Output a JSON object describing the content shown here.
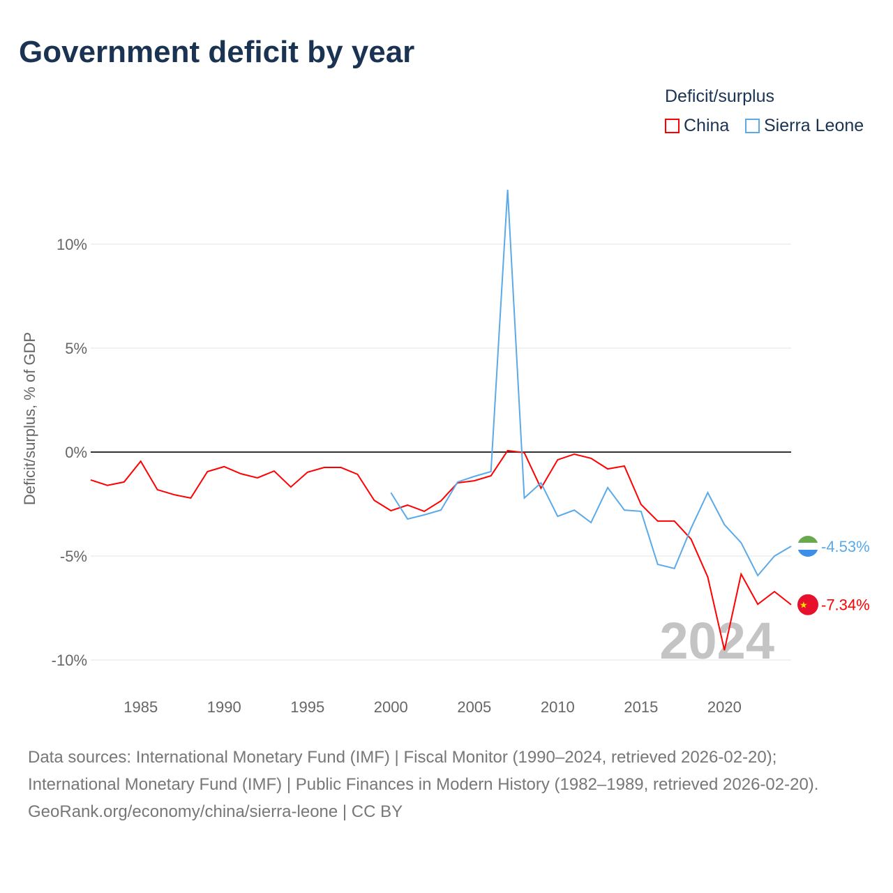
{
  "title": "Government deficit by year",
  "legend": {
    "title": "Deficit/surplus",
    "items": [
      {
        "name": "China",
        "color": "#ff0000"
      },
      {
        "name": "Sierra Leone",
        "color": "#5aa9e9"
      }
    ]
  },
  "chart_data": {
    "type": "line",
    "title": "Government deficit by year",
    "ylabel": "Deficit/surplus, % of GDP",
    "xlabel": "",
    "xlim": [
      1982,
      2024
    ],
    "ylim": [
      -10,
      10
    ],
    "x_ticks": [
      "1985",
      "1990",
      "1995",
      "2000",
      "2005",
      "2010",
      "2015",
      "2020"
    ],
    "y_ticks": [
      {
        "v": 10,
        "label": "10%"
      },
      {
        "v": 5,
        "label": "5%"
      },
      {
        "v": 0,
        "label": "0%"
      },
      {
        "v": -5,
        "label": "-5%"
      },
      {
        "v": -10,
        "label": "-10%"
      }
    ],
    "year_label": "2024",
    "series": [
      {
        "name": "China",
        "color": "#ff0000",
        "end_label": "-7.34%",
        "start": 1982,
        "values": [
          -1.34,
          -1.6,
          -1.44,
          -0.44,
          -1.81,
          -2.05,
          -2.21,
          -0.94,
          -0.7,
          -1.04,
          -1.24,
          -0.91,
          -1.68,
          -0.97,
          -0.74,
          -0.74,
          -1.07,
          -2.32,
          -2.82,
          -2.55,
          -2.85,
          -2.35,
          -1.48,
          -1.38,
          -1.14,
          0.07,
          -0.03,
          -1.74,
          -0.37,
          -0.1,
          -0.3,
          -0.81,
          -0.67,
          -2.52,
          -3.32,
          -3.32,
          -4.19,
          -6.01,
          -9.53,
          -5.87,
          -7.32,
          -6.71,
          -7.34
        ]
      },
      {
        "name": "Sierra Leone",
        "color": "#5aa9e9",
        "end_label": "-4.53%",
        "start": 2000,
        "values": [
          -1.95,
          -3.22,
          -3.02,
          -2.79,
          -1.44,
          -1.17,
          -0.94,
          12.62,
          -2.21,
          -1.48,
          -3.09,
          -2.79,
          -3.39,
          -1.71,
          -2.79,
          -2.85,
          -5.4,
          -5.6,
          -3.66,
          -1.95,
          -3.49,
          -4.36,
          -5.94,
          -5.0,
          -4.53
        ]
      }
    ]
  },
  "footer": {
    "sources": "Data sources: International Monetary Fund (IMF) | Fiscal Monitor (1990–2024, retrieved 2026-02-20); International Monetary Fund (IMF) | Public Finances in Modern History (1982–1989, retrieved 2026-02-20).",
    "link": "GeoRank.org/economy/china/sierra-leone | CC BY"
  }
}
